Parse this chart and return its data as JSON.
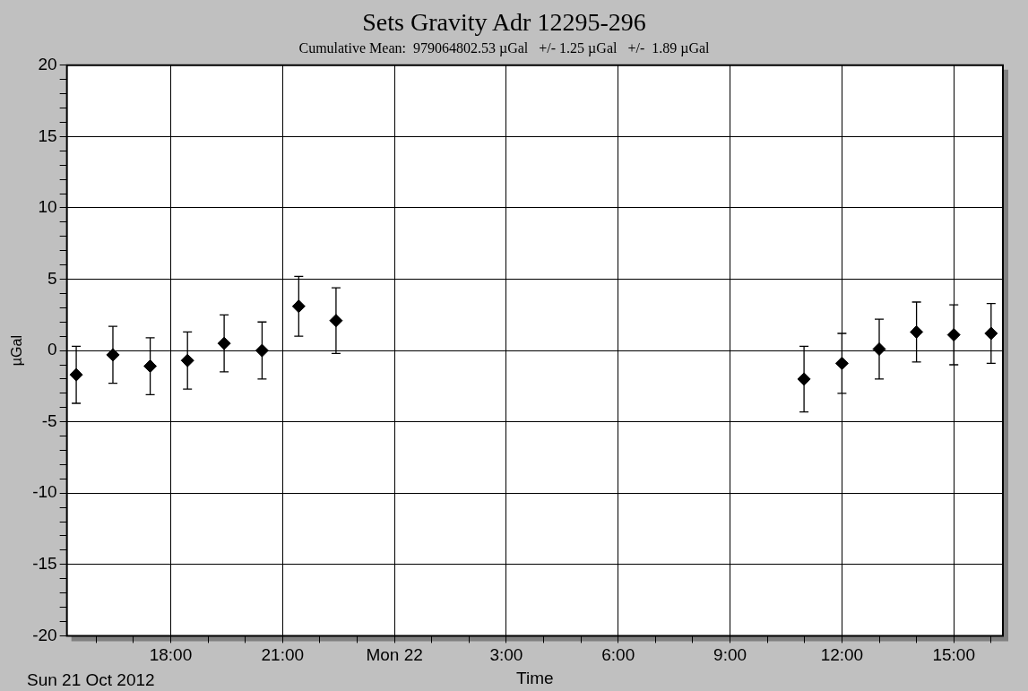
{
  "chart_data": {
    "type": "scatter",
    "title": "Sets Gravity Adr 12295-296",
    "subtitle": "Cumulative Mean:  979064802.53 µGal   +/- 1.25 µGal   +/-  1.89 µGal",
    "xlabel": "Time",
    "ylabel": "µGal",
    "annotations": [
      "Sun 21 Oct 2012"
    ],
    "x": [
      "2012-10-21T15:28",
      "2012-10-21T16:27",
      "2012-10-21T17:27",
      "2012-10-21T18:27",
      "2012-10-21T19:26",
      "2012-10-21T20:27",
      "2012-10-21T21:26",
      "2012-10-21T22:26",
      "2012-10-22T10:59",
      "2012-10-22T12:00",
      "2012-10-22T13:00",
      "2012-10-22T14:00",
      "2012-10-22T15:00",
      "2012-10-22T16:00"
    ],
    "values": [
      -1.7,
      -0.3,
      -1.1,
      -0.7,
      0.5,
      0.0,
      3.1,
      2.1,
      -2.0,
      -0.9,
      0.1,
      1.3,
      1.1,
      1.2
    ],
    "errors": [
      2.0,
      2.0,
      2.0,
      2.0,
      2.0,
      2.0,
      2.1,
      2.3,
      2.3,
      2.1,
      2.1,
      2.1,
      2.1,
      2.1
    ],
    "color": "#000000",
    "marker": "diamond",
    "legend": false,
    "grid": true,
    "xlim": [
      "2012-10-21T15:13",
      "2012-10-22T16:19"
    ],
    "xticks": [
      {
        "value": "2012-10-21T16:00",
        "label": null
      },
      {
        "value": "2012-10-21T17:00",
        "label": null
      },
      {
        "value": "2012-10-21T18:00",
        "label": "18:00"
      },
      {
        "value": "2012-10-21T19:00",
        "label": null
      },
      {
        "value": "2012-10-21T20:00",
        "label": null
      },
      {
        "value": "2012-10-21T21:00",
        "label": "21:00"
      },
      {
        "value": "2012-10-21T22:00",
        "label": null
      },
      {
        "value": "2012-10-21T23:00",
        "label": null
      },
      {
        "value": "2012-10-22T00:00",
        "label": "Mon 22"
      },
      {
        "value": "2012-10-22T01:00",
        "label": null
      },
      {
        "value": "2012-10-22T02:00",
        "label": null
      },
      {
        "value": "2012-10-22T03:00",
        "label": "3:00"
      },
      {
        "value": "2012-10-22T04:00",
        "label": null
      },
      {
        "value": "2012-10-22T05:00",
        "label": null
      },
      {
        "value": "2012-10-22T06:00",
        "label": "6:00"
      },
      {
        "value": "2012-10-22T07:00",
        "label": null
      },
      {
        "value": "2012-10-22T08:00",
        "label": null
      },
      {
        "value": "2012-10-22T09:00",
        "label": "9:00"
      },
      {
        "value": "2012-10-22T10:00",
        "label": null
      },
      {
        "value": "2012-10-22T11:00",
        "label": null
      },
      {
        "value": "2012-10-22T12:00",
        "label": "12:00"
      },
      {
        "value": "2012-10-22T13:00",
        "label": null
      },
      {
        "value": "2012-10-22T14:00",
        "label": null
      },
      {
        "value": "2012-10-22T15:00",
        "label": "15:00"
      },
      {
        "value": "2012-10-22T16:00",
        "label": null
      }
    ],
    "ylim": [
      -20,
      20
    ],
    "yticks": [
      -20,
      {
        "value": -19,
        "label": null
      },
      {
        "value": -18,
        "label": null
      },
      {
        "value": -17,
        "label": null
      },
      {
        "value": -16,
        "label": null
      },
      -15,
      {
        "value": -14,
        "label": null
      },
      {
        "value": -13,
        "label": null
      },
      {
        "value": -12,
        "label": null
      },
      {
        "value": -11,
        "label": null
      },
      -10,
      {
        "value": -9,
        "label": null
      },
      {
        "value": -8,
        "label": null
      },
      {
        "value": -7,
        "label": null
      },
      {
        "value": -6,
        "label": null
      },
      -5,
      {
        "value": -4,
        "label": null
      },
      {
        "value": -3,
        "label": null
      },
      {
        "value": -2,
        "label": null
      },
      {
        "value": -1,
        "label": null
      },
      0,
      {
        "value": 1,
        "label": null
      },
      {
        "value": 2,
        "label": null
      },
      {
        "value": 3,
        "label": null
      },
      {
        "value": 4,
        "label": null
      },
      5,
      {
        "value": 6,
        "label": null
      },
      {
        "value": 7,
        "label": null
      },
      {
        "value": 8,
        "label": null
      },
      {
        "value": 9,
        "label": null
      },
      10,
      {
        "value": 11,
        "label": null
      },
      {
        "value": 12,
        "label": null
      },
      {
        "value": 13,
        "label": null
      },
      {
        "value": 14,
        "label": null
      },
      15,
      {
        "value": 16,
        "label": null
      },
      {
        "value": 17,
        "label": null
      },
      {
        "value": 18,
        "label": null
      },
      {
        "value": 19,
        "label": null
      },
      20
    ]
  }
}
